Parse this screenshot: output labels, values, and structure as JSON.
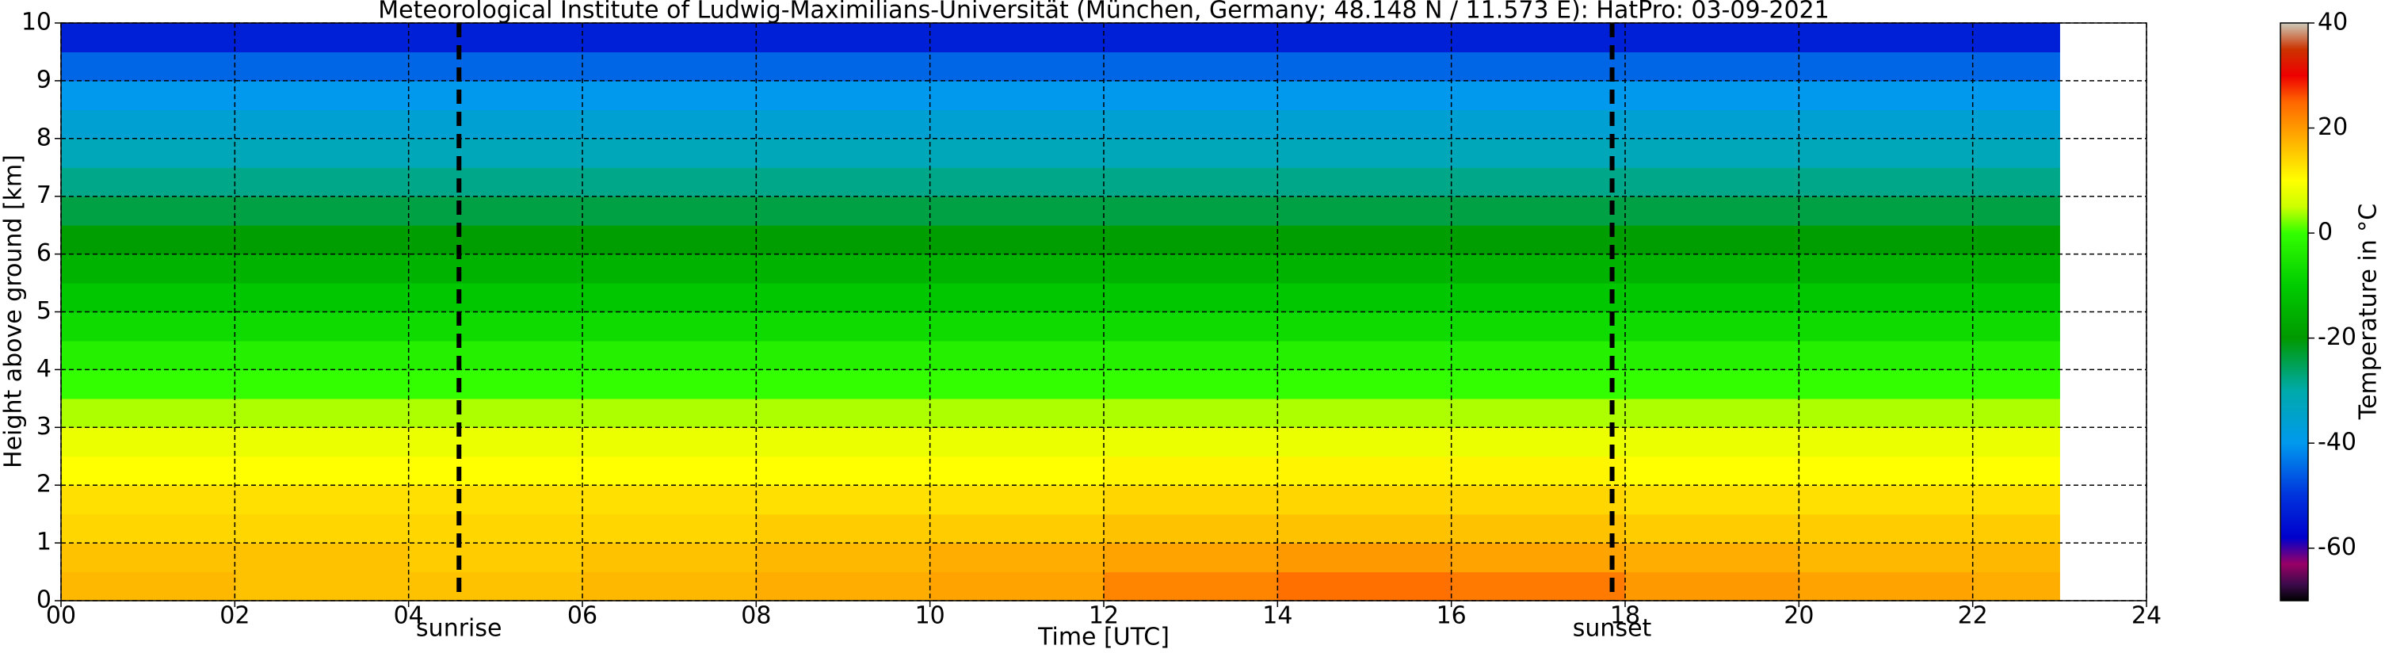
{
  "chart_data": {
    "type": "heatmap",
    "title": "Meteorological Institute of Ludwig-Maximilians-Universität (München, Germany; 48.148 N / 11.573 E):    HatPro: 03-09-2021",
    "xlabel": "Time [UTC]",
    "ylabel": "Height above ground [km]",
    "colorbar_label": "Temperature in °C",
    "xlim": [
      0,
      24
    ],
    "ylim": [
      0,
      10
    ],
    "xticks": [
      {
        "value": 0,
        "label": "00"
      },
      {
        "value": 2,
        "label": "02"
      },
      {
        "value": 4,
        "label": "04"
      },
      {
        "value": 6,
        "label": "06"
      },
      {
        "value": 8,
        "label": "08"
      },
      10,
      12,
      14,
      16,
      18,
      20,
      22,
      24
    ],
    "yticks": [
      0,
      1,
      2,
      3,
      4,
      5,
      6,
      7,
      8,
      9,
      10
    ],
    "grid": true,
    "x_edges": [
      0,
      2,
      4,
      6,
      8,
      10,
      12,
      14,
      16,
      18,
      20,
      22,
      23
    ],
    "y_edges": [
      0,
      0.5,
      1,
      1.5,
      2,
      2.5,
      3,
      3.5,
      4,
      4.5,
      5,
      5.5,
      6,
      6.5,
      7,
      7.5,
      8,
      8.5,
      9,
      9.5,
      10
    ],
    "z": [
      [
        17,
        16,
        16,
        17,
        18,
        19,
        22,
        24,
        23,
        20,
        19,
        18
      ],
      [
        16,
        16,
        15,
        16,
        17,
        18,
        19,
        20,
        19,
        18,
        17,
        17
      ],
      [
        14,
        14,
        14,
        14,
        15,
        15,
        16,
        16,
        16,
        15,
        15,
        15
      ],
      [
        13,
        13,
        13,
        13,
        13,
        13,
        14,
        14,
        14,
        13,
        13,
        13
      ],
      [
        10,
        10,
        10,
        10,
        10,
        10,
        11,
        11,
        11,
        10,
        10,
        10
      ],
      [
        8,
        8,
        8,
        8,
        8,
        8,
        8,
        8,
        8,
        8,
        8,
        8
      ],
      [
        4,
        4,
        4,
        4,
        4,
        4,
        4,
        4,
        4,
        4,
        4,
        4
      ],
      [
        0,
        0,
        0,
        0,
        0,
        0,
        0,
        0,
        0,
        0,
        0,
        0
      ],
      [
        -3,
        -3,
        -3,
        -3,
        -3,
        -3,
        -3,
        -3,
        -3,
        -3,
        -3,
        -3
      ],
      [
        -7,
        -7,
        -7,
        -7,
        -7,
        -7,
        -7,
        -7,
        -7,
        -7,
        -7,
        -7
      ],
      [
        -11,
        -11,
        -11,
        -11,
        -11,
        -11,
        -11,
        -11,
        -11,
        -11,
        -11,
        -11
      ],
      [
        -15,
        -15,
        -15,
        -15,
        -15,
        -15,
        -15,
        -15,
        -15,
        -15,
        -15,
        -15
      ],
      [
        -19,
        -19,
        -19,
        -19,
        -19,
        -19,
        -19,
        -19,
        -19,
        -19,
        -19,
        -19
      ],
      [
        -24,
        -24,
        -24,
        -24,
        -24,
        -24,
        -24,
        -24,
        -24,
        -24,
        -24,
        -24
      ],
      [
        -28,
        -28,
        -28,
        -28,
        -28,
        -28,
        -28,
        -28,
        -28,
        -28,
        -28,
        -28
      ],
      [
        -32,
        -32,
        -32,
        -32,
        -32,
        -32,
        -32,
        -32,
        -32,
        -32,
        -32,
        -32
      ],
      [
        -36,
        -36,
        -36,
        -36,
        -36,
        -36,
        -36,
        -36,
        -36,
        -36,
        -36,
        -36
      ],
      [
        -40,
        -40,
        -40,
        -40,
        -40,
        -40,
        -40,
        -40,
        -40,
        -40,
        -40,
        -40
      ],
      [
        -45,
        -45,
        -45,
        -45,
        -45,
        -45,
        -45,
        -45,
        -45,
        -45,
        -45,
        -45
      ],
      [
        -53,
        -53,
        -53,
        -53,
        -53,
        -53,
        -53,
        -53,
        -53,
        -53,
        -53,
        -53
      ]
    ],
    "clim": [
      -70,
      40
    ],
    "cticks": [
      -60,
      -40,
      -20,
      0,
      20,
      40
    ],
    "colormap": [
      {
        "value": -70,
        "color": "#000000"
      },
      {
        "value": -67,
        "color": "#3a0a4a"
      },
      {
        "value": -63,
        "color": "#990066"
      },
      {
        "value": -58,
        "color": "#0000cc"
      },
      {
        "value": -50,
        "color": "#0033dd"
      },
      {
        "value": -40,
        "color": "#0099ee"
      },
      {
        "value": -30,
        "color": "#00aaaa"
      },
      {
        "value": -20,
        "color": "#009900"
      },
      {
        "value": -10,
        "color": "#00cc00"
      },
      {
        "value": 0,
        "color": "#33ff00"
      },
      {
        "value": 5,
        "color": "#ccff00"
      },
      {
        "value": 10,
        "color": "#ffff00"
      },
      {
        "value": 20,
        "color": "#ff9900"
      },
      {
        "value": 25,
        "color": "#ff6600"
      },
      {
        "value": 30,
        "color": "#ee0000"
      },
      {
        "value": 35,
        "color": "#cc3300"
      },
      {
        "value": 40,
        "color": "#ccccbb"
      }
    ],
    "events": [
      {
        "label": "sunrise",
        "x": 4.58
      },
      {
        "label": "sunset",
        "x": 17.85
      }
    ]
  }
}
